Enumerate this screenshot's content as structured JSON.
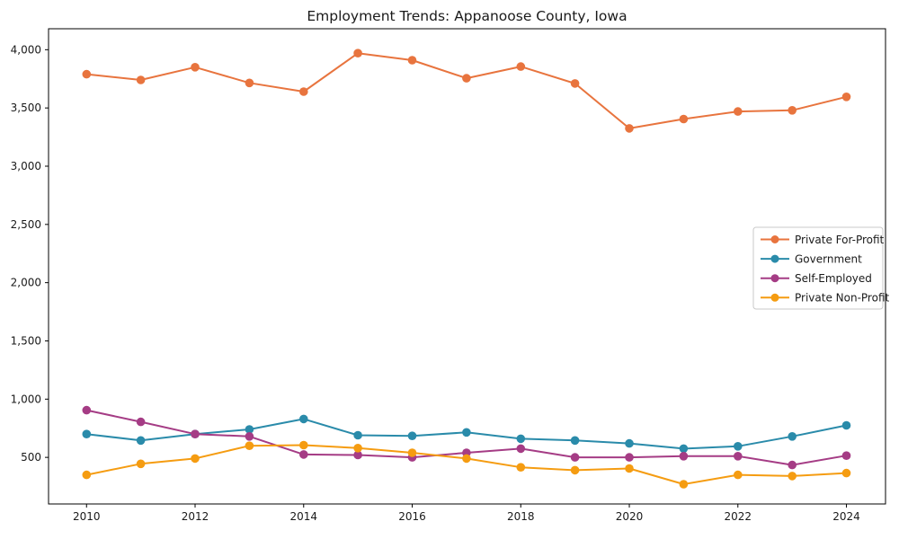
{
  "chart_data": {
    "type": "line",
    "title": "Employment Trends: Appanoose County, Iowa",
    "xlabel": "",
    "ylabel": "",
    "x": [
      2010,
      2011,
      2012,
      2013,
      2014,
      2015,
      2016,
      2017,
      2018,
      2019,
      2020,
      2021,
      2022,
      2023,
      2024
    ],
    "series": [
      {
        "name": "Private For-Profit",
        "color": "#E8743E",
        "values": [
          3790,
          3740,
          3850,
          3715,
          3640,
          3970,
          3910,
          3755,
          3855,
          3710,
          3325,
          3405,
          3470,
          3480,
          3595
        ]
      },
      {
        "name": "Government",
        "color": "#2A8BAA",
        "values": [
          700,
          645,
          700,
          740,
          830,
          690,
          685,
          715,
          660,
          645,
          620,
          575,
          595,
          680,
          775
        ]
      },
      {
        "name": "Self-Employed",
        "color": "#A53C85",
        "values": [
          905,
          805,
          700,
          680,
          525,
          520,
          500,
          540,
          575,
          500,
          500,
          510,
          510,
          435,
          515
        ]
      },
      {
        "name": "Private Non-Profit",
        "color": "#F59C11",
        "values": [
          350,
          445,
          490,
          600,
          605,
          580,
          540,
          490,
          415,
          390,
          405,
          270,
          350,
          340,
          365
        ]
      }
    ],
    "xticks": [
      2010,
      2012,
      2014,
      2016,
      2018,
      2020,
      2022,
      2024
    ],
    "xtick_labels": [
      "2010",
      "2012",
      "2014",
      "2016",
      "2018",
      "2020",
      "2022",
      "2024"
    ],
    "yticks": [
      500,
      1000,
      1500,
      2000,
      2500,
      3000,
      3500,
      4000
    ],
    "ytick_labels": [
      "500",
      "1,000",
      "1,500",
      "2,000",
      "2,500",
      "3,000",
      "3,500",
      "4,000"
    ],
    "xlim": [
      2009.3,
      2024.72
    ],
    "ylim": [
      100,
      4180
    ],
    "grid": false,
    "marker": "circle",
    "legend_position": "center right",
    "frame_color": "#000000",
    "legend_border_color": "#c9c9c9"
  }
}
